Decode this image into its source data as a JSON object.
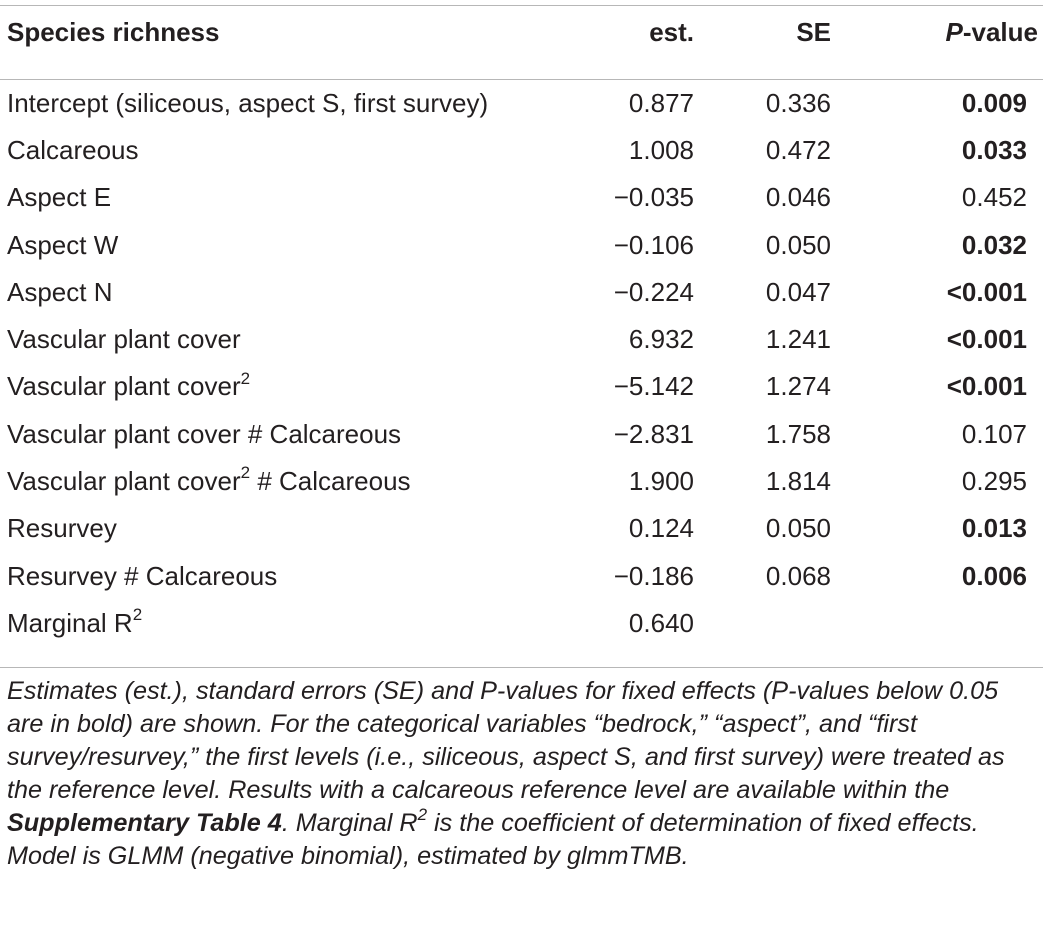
{
  "table": {
    "header": {
      "label": "Species richness",
      "est": "est.",
      "se": "SE",
      "p_italic": "P",
      "p_rest": "-value"
    },
    "rows": [
      {
        "label": "Intercept (siliceous, aspect S, first survey)",
        "sup": "",
        "suffix": "",
        "est": "0.877",
        "se": "0.336",
        "p": "0.009",
        "bold": true
      },
      {
        "label": "Calcareous",
        "sup": "",
        "suffix": "",
        "est": "1.008",
        "se": "0.472",
        "p": "0.033",
        "bold": true
      },
      {
        "label": "Aspect E",
        "sup": "",
        "suffix": "",
        "est": "−0.035",
        "se": "0.046",
        "p": "0.452",
        "bold": false
      },
      {
        "label": "Aspect W",
        "sup": "",
        "suffix": "",
        "est": "−0.106",
        "se": "0.050",
        "p": "0.032",
        "bold": true
      },
      {
        "label": "Aspect N",
        "sup": "",
        "suffix": "",
        "est": "−0.224",
        "se": "0.047",
        "p": "<0.001",
        "bold": true
      },
      {
        "label": "Vascular plant cover",
        "sup": "",
        "suffix": "",
        "est": "6.932",
        "se": "1.241",
        "p": "<0.001",
        "bold": true
      },
      {
        "label": "Vascular plant cover",
        "sup": "2",
        "suffix": "",
        "est": "−5.142",
        "se": "1.274",
        "p": "<0.001",
        "bold": true
      },
      {
        "label": "Vascular plant cover # Calcareous",
        "sup": "",
        "suffix": "",
        "est": "−2.831",
        "se": "1.758",
        "p": "0.107",
        "bold": false
      },
      {
        "label": "Vascular plant cover",
        "sup": "2",
        "suffix": " # Calcareous",
        "est": "1.900",
        "se": "1.814",
        "p": "0.295",
        "bold": false
      },
      {
        "label": "Resurvey",
        "sup": "",
        "suffix": "",
        "est": "0.124",
        "se": "0.050",
        "p": "0.013",
        "bold": true
      },
      {
        "label": "Resurvey # Calcareous",
        "sup": "",
        "suffix": "",
        "est": "−0.186",
        "se": "0.068",
        "p": "0.006",
        "bold": true
      },
      {
        "label": "Marginal R",
        "sup": "2",
        "suffix": "",
        "est": "0.640",
        "se": "",
        "p": "",
        "bold": false
      }
    ]
  },
  "footnote": {
    "line1_before": "Estimates (est.), standard errors (SE) and P-values for fixed effects (P-values below 0.05 are in bold) are shown. For the categorical variables “bedrock,” “aspect”, and “first survey/resurvey,” the first levels (i.e., siliceous, aspect S, and first survey) were treated as the reference level. Results with a calcareous reference level are available within the ",
    "line1_bold": "Supplementary Table 4",
    "line1_mid": ". Marginal R",
    "line1_sup": "2",
    "line1_after": " is the coefficient of determination of fixed effects.",
    "line2": "Model is GLMM (negative binomial), estimated by glmmTMB."
  }
}
